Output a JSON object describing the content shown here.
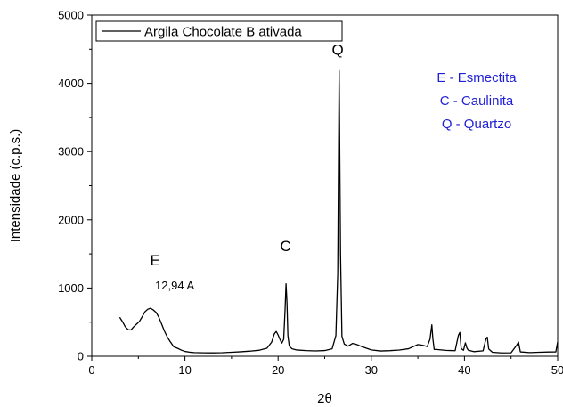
{
  "chart_data": {
    "type": "line",
    "title": "",
    "xlabel": "2θ",
    "ylabel": "Intensidade (c.p.s.)",
    "xlim": [
      0,
      50
    ],
    "ylim": [
      0,
      5000
    ],
    "x_ticks": [
      "0",
      "10",
      "20",
      "30",
      "40",
      "50"
    ],
    "y_ticks": [
      "0",
      "1000",
      "2000",
      "3000",
      "4000",
      "5000"
    ],
    "x_tick_values": [
      0,
      10,
      20,
      30,
      40,
      50
    ],
    "y_tick_values": [
      0,
      1000,
      2000,
      3000,
      4000,
      5000
    ],
    "legend": {
      "label": "Argila Chocolate B ativada",
      "placement": "top-left"
    },
    "grid": false,
    "series": [
      {
        "name": "Argila Chocolate B ativada",
        "color": "#000000",
        "x": [
          3.0,
          3.3,
          3.6,
          3.9,
          4.2,
          4.5,
          4.8,
          5.1,
          5.4,
          5.7,
          6.0,
          6.3,
          6.6,
          6.9,
          7.2,
          7.5,
          7.8,
          8.1,
          8.4,
          8.8,
          9.2,
          9.6,
          10.0,
          10.5,
          11.0,
          12.0,
          13.0,
          14.0,
          15.0,
          16.0,
          17.0,
          18.0,
          18.8,
          19.3,
          19.6,
          19.8,
          20.0,
          20.2,
          20.4,
          20.6,
          20.75,
          20.85,
          20.95,
          21.05,
          21.2,
          21.5,
          22.0,
          23.0,
          24.0,
          25.0,
          25.8,
          26.2,
          26.4,
          26.55,
          26.7,
          26.85,
          27.1,
          27.5,
          28.0,
          28.5,
          29.0,
          30.0,
          31.0,
          32.0,
          33.0,
          34.0,
          35.0,
          35.5,
          36.0,
          36.3,
          36.5,
          36.6,
          36.75,
          37.0,
          38.0,
          39.0,
          39.35,
          39.5,
          39.65,
          39.9,
          40.1,
          40.25,
          40.4,
          41.0,
          42.0,
          42.3,
          42.45,
          42.6,
          43.0,
          44.0,
          45.0,
          45.6,
          45.8,
          46.0,
          47.0,
          48.0,
          49.0,
          49.8,
          50.0
        ],
        "y": [
          560,
          500,
          440,
          400,
          380,
          420,
          470,
          520,
          580,
          640,
          680,
          710,
          690,
          640,
          560,
          470,
          380,
          290,
          210,
          150,
          110,
          90,
          80,
          70,
          65,
          62,
          60,
          60,
          62,
          65,
          70,
          80,
          110,
          200,
          340,
          360,
          300,
          240,
          200,
          260,
          700,
          1050,
          800,
          300,
          140,
          100,
          85,
          80,
          80,
          90,
          120,
          300,
          1200,
          4180,
          1500,
          300,
          170,
          160,
          200,
          180,
          150,
          100,
          80,
          80,
          85,
          100,
          160,
          150,
          130,
          250,
          450,
          280,
          110,
          90,
          80,
          80,
          300,
          350,
          120,
          80,
          200,
          120,
          80,
          75,
          90,
          260,
          280,
          100,
          70,
          60,
          60,
          150,
          200,
          70,
          55,
          55,
          55,
          55,
          200
        ]
      }
    ],
    "annotations": [
      {
        "text": "E",
        "x": 6.8,
        "y": 1330
      },
      {
        "text": "12,94 A",
        "x": 8.9,
        "y": 980
      },
      {
        "text": "C",
        "x": 20.8,
        "y": 1540
      },
      {
        "text": "Q",
        "x": 26.4,
        "y": 4420
      }
    ],
    "key": {
      "color": "#1f1fd6",
      "items": [
        "E - Esmectita",
        "C - Caulinita",
        "Q -  Quartzo"
      ]
    }
  }
}
